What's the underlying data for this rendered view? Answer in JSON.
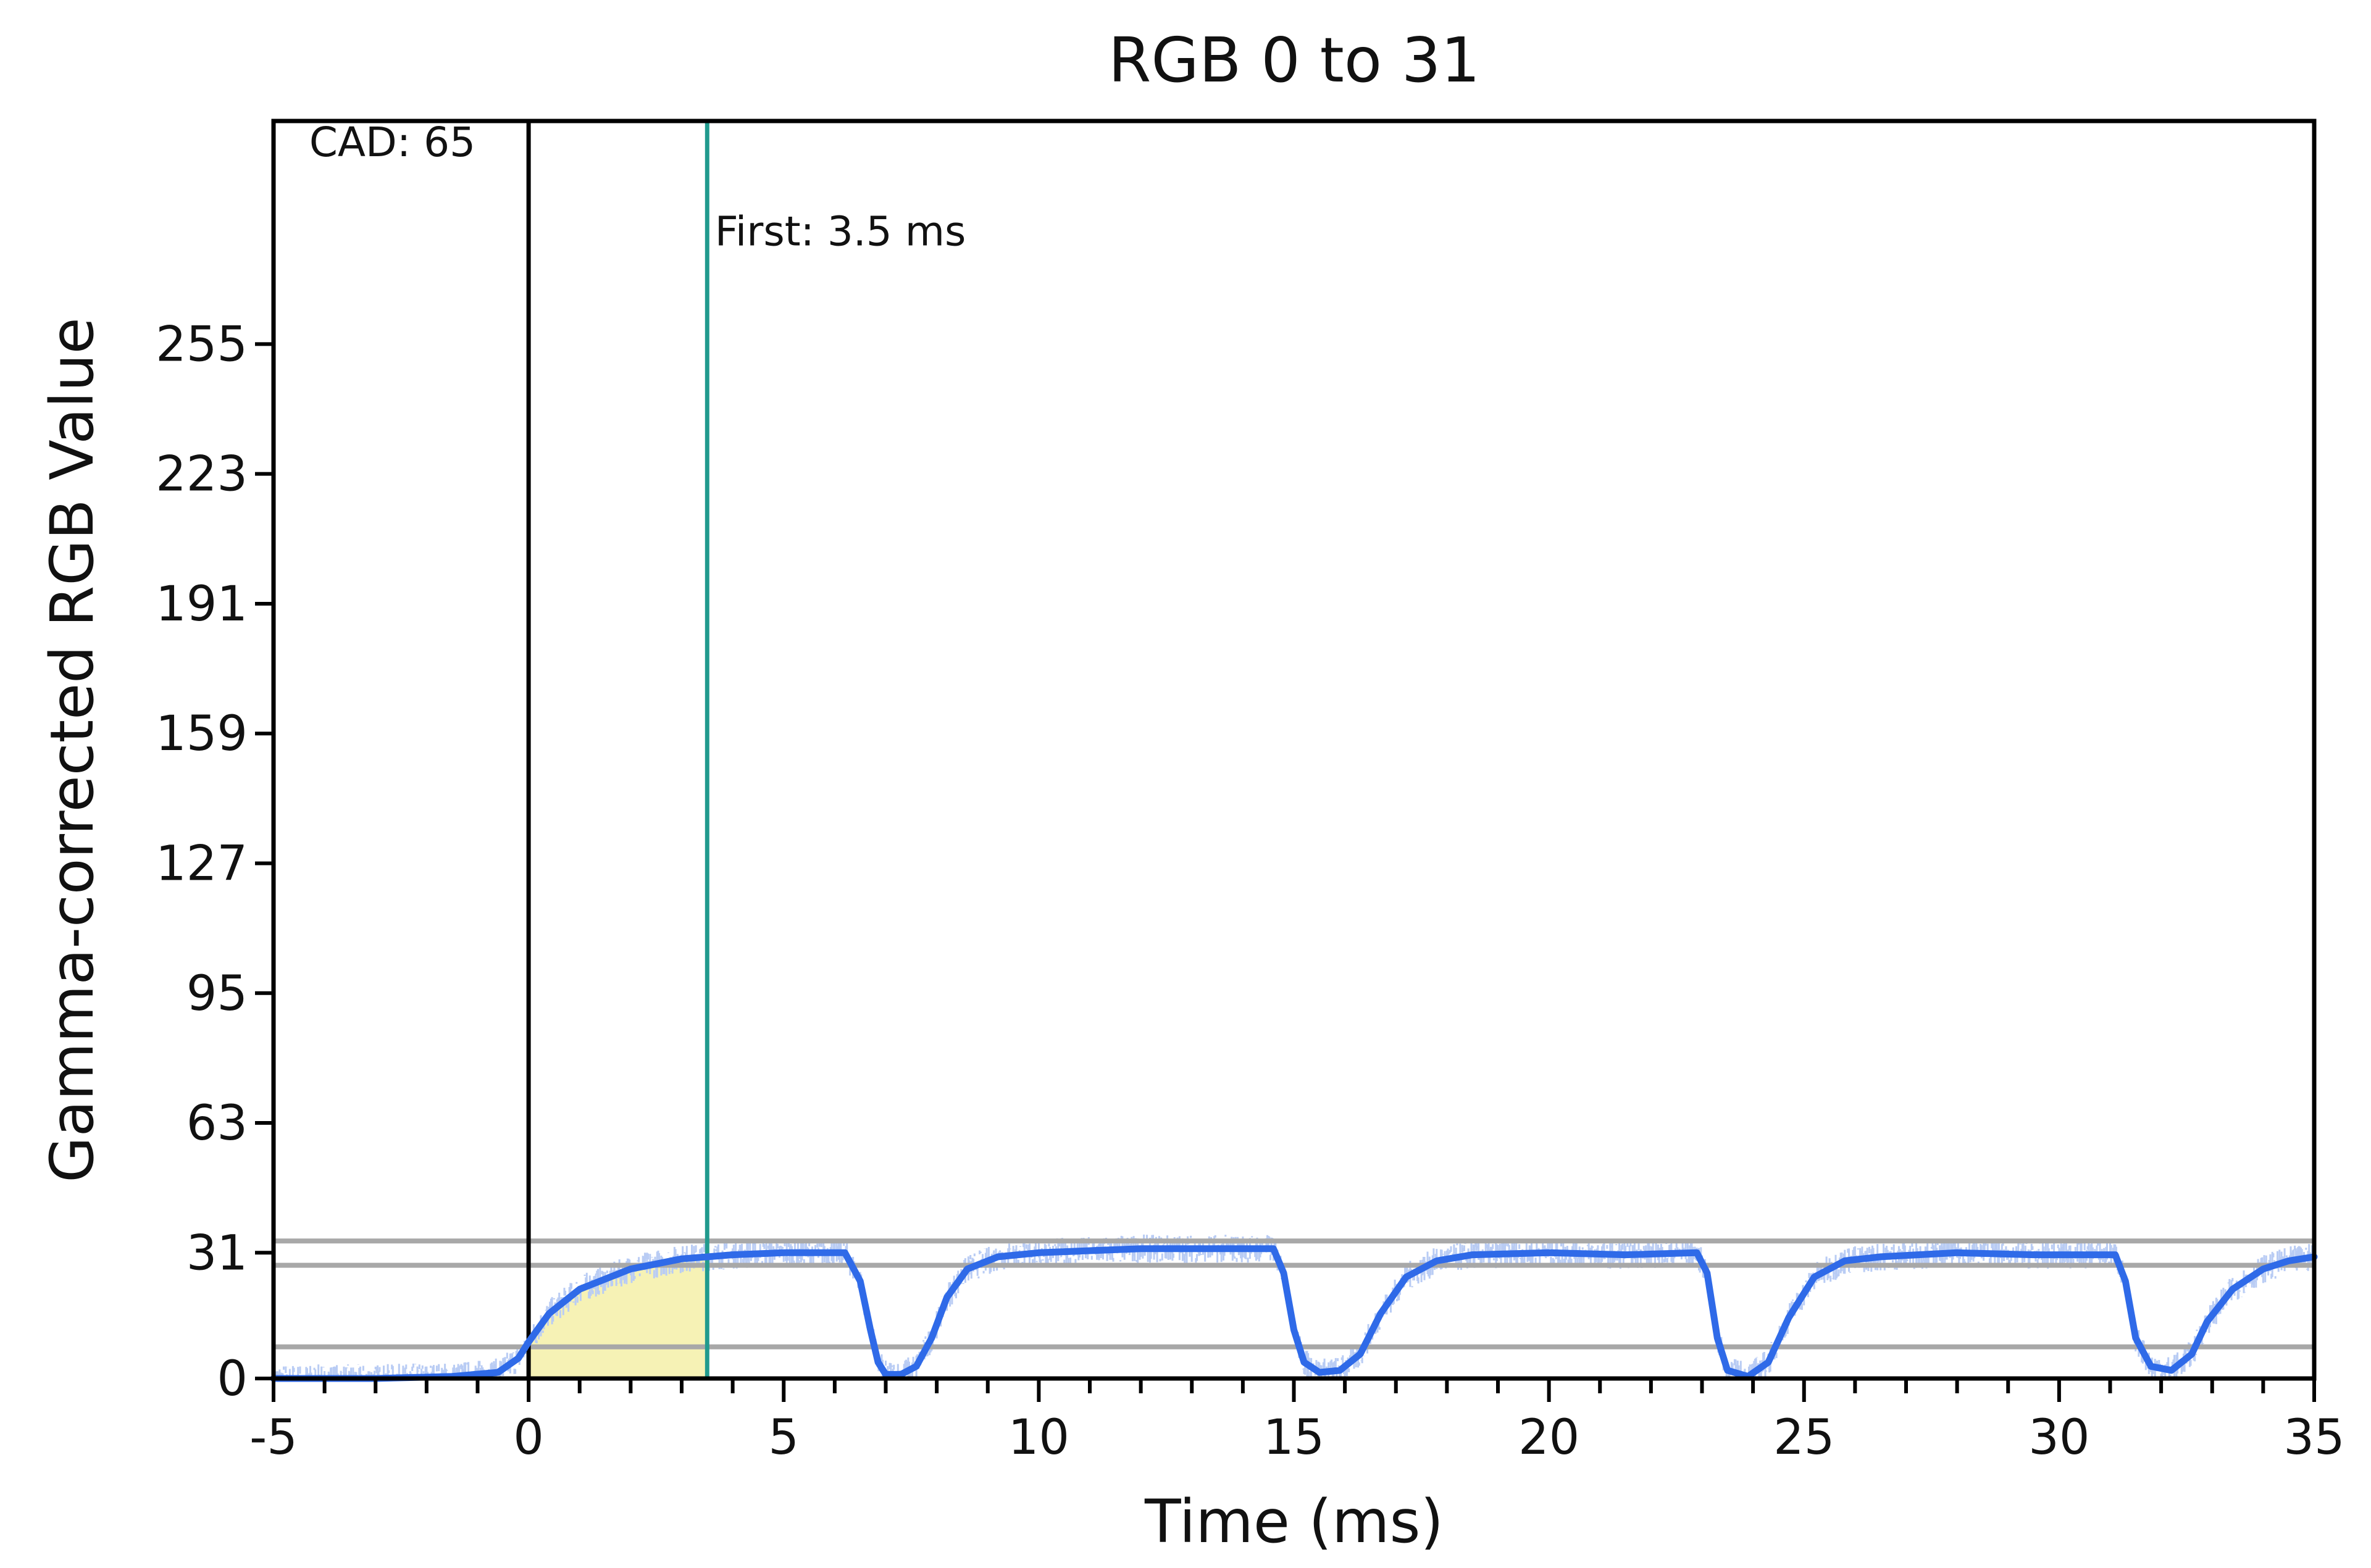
{
  "chart_data": {
    "type": "line",
    "title": "RGB 0 to 31",
    "xlabel": "Time (ms)",
    "ylabel": "Gamma-corrected RGB Value",
    "xlim": [
      -5,
      35
    ],
    "ylim": [
      0,
      310
    ],
    "x_ticks": [
      -5,
      0,
      5,
      10,
      15,
      20,
      25,
      30,
      35
    ],
    "x_tick_labels": [
      "-5",
      "0",
      "5",
      "10",
      "15",
      "20",
      "25",
      "30",
      "35"
    ],
    "y_ticks": [
      0,
      31,
      63,
      95,
      127,
      159,
      191,
      223,
      255
    ],
    "y_tick_labels": [
      "0",
      "31",
      "63",
      "95",
      "127",
      "159",
      "191",
      "223",
      "255"
    ],
    "grid": false,
    "colors": {
      "smoothed": "#2f6ae8",
      "raw": "#b9ccf4",
      "reference_lines": "#a8a8a8",
      "start_marker": "#000000",
      "first_marker": "#219a8e",
      "shade": "#f5f0a8"
    },
    "reference_levels": [
      7.8,
      27.9,
      33.9
    ],
    "markers": {
      "start_x": 0,
      "first_x": 3.5
    },
    "annotations": [
      {
        "text": "CAD: 65",
        "x": -4.3,
        "y": 305
      },
      {
        "text": "First: 3.5 ms",
        "x": 3.65,
        "y": 283
      }
    ],
    "shaded_region": {
      "x": [
        0,
        3.5
      ],
      "note_color": "shade"
    },
    "series": [
      {
        "style": "smoothed",
        "x": [
          -5,
          -3,
          -1.5,
          -0.6,
          -0.2,
          0,
          0.4,
          1,
          2,
          3,
          4,
          5,
          6.2,
          6.5,
          6.7,
          6.85,
          7,
          7.3,
          7.6,
          7.9,
          8.2,
          8.6,
          9.2,
          10,
          11,
          12,
          13.5,
          14.6,
          14.8,
          15,
          15.2,
          15.5,
          15.9,
          16.3,
          16.7,
          17.2,
          17.8,
          18.5,
          20,
          21.5,
          22.9,
          23.1,
          23.3,
          23.5,
          23.9,
          24.3,
          24.7,
          25.2,
          25.8,
          26.5,
          28,
          29.5,
          31.1,
          31.3,
          31.5,
          31.8,
          32.2,
          32.6,
          32.9,
          33.4,
          34,
          34.5,
          35
        ],
        "y": [
          0,
          0,
          0.5,
          1.5,
          5,
          9,
          16,
          22,
          27,
          29.5,
          30.5,
          31,
          31,
          24,
          12,
          4,
          1,
          1,
          3,
          10,
          20,
          27,
          30,
          31,
          31.5,
          32,
          32,
          32,
          26,
          12,
          4,
          1.5,
          2,
          6,
          16,
          25,
          29,
          30.5,
          31,
          30.5,
          31,
          26,
          10,
          2,
          0.5,
          4,
          15,
          25,
          29,
          30,
          31,
          30.5,
          30.5,
          24,
          10,
          3,
          2,
          6,
          14,
          22,
          27,
          29,
          30
        ]
      }
    ]
  }
}
